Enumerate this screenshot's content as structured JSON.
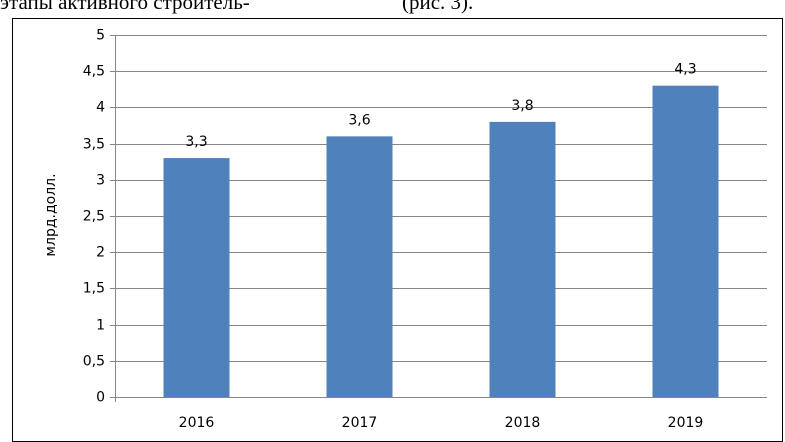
{
  "chart_data": {
    "type": "bar",
    "annotations": [
      "этапы активного строитель-",
      "(рис. 3)."
    ],
    "y_label": "млрд.долл.",
    "categories": [
      "2016",
      "2017",
      "2018",
      "2019"
    ],
    "values": [
      3.3,
      3.6,
      3.8,
      4.3
    ],
    "value_labels": [
      "3,3",
      "3,6",
      "3,8",
      "4,3"
    ],
    "color": "#4f81bd",
    "ylim": [
      0,
      5
    ],
    "yticks": [
      0,
      {
        "value": 0.5,
        "label": "0,5"
      },
      1,
      {
        "value": 1.5,
        "label": "1,5"
      },
      2,
      {
        "value": 2.5,
        "label": "2,5"
      },
      3,
      {
        "value": 3.5,
        "label": "3,5"
      },
      4,
      {
        "value": 4.5,
        "label": "4,5"
      },
      5
    ],
    "grid": true
  }
}
